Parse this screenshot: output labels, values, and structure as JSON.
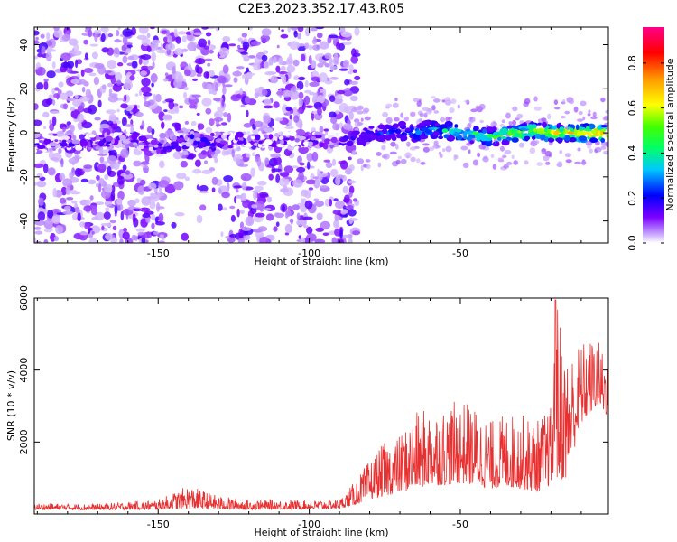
{
  "title": "C2E3.2023.352.17.43.R05",
  "chart_data": [
    {
      "type": "heatmap",
      "name": "spectrogram",
      "xlabel": "Height of straight line (km)",
      "ylabel": "Frequency (Hz)",
      "xlim": [
        -191,
        -1
      ],
      "ylim": [
        -50,
        48
      ],
      "xticks": [
        -150,
        -100,
        -50
      ],
      "yticks": [
        -40,
        -20,
        0,
        20,
        40
      ],
      "ridge": {
        "x": [
          -191,
          -180,
          -170,
          -160,
          -150,
          -145,
          -140,
          -135,
          -130,
          -120,
          -110,
          -100,
          -90,
          -86,
          -80,
          -75,
          -70,
          -65,
          -60,
          -55,
          -50,
          -45,
          -40,
          -35,
          -30,
          -25,
          -20,
          -15,
          -10,
          -5,
          -1
        ],
        "y": [
          -6,
          -5,
          -4,
          -3,
          -6,
          -4,
          -3,
          -5,
          -4,
          -3,
          -3,
          -3,
          -4,
          -3,
          -1,
          0,
          1,
          0,
          2,
          1,
          0,
          -1,
          -2,
          -1,
          0,
          1,
          0,
          0,
          0,
          0,
          0
        ]
      },
      "colorbar": {
        "label": "Normalized spectral amplitude",
        "ticks": [
          0.0,
          0.2,
          0.4,
          0.6,
          0.8
        ],
        "range": [
          0,
          0.96
        ]
      }
    },
    {
      "type": "line",
      "name": "snr",
      "xlabel": "Height of straight line (km)",
      "ylabel": "SNR (10 * v/v)",
      "xlim": [
        -191,
        -1
      ],
      "ylim": [
        0,
        6000
      ],
      "xticks": [
        -150,
        -100,
        -50
      ],
      "yticks": [
        2000,
        4000,
        6000
      ],
      "color": "#e83030",
      "envelope": {
        "x": [
          -191,
          -170,
          -150,
          -140,
          -130,
          -120,
          -100,
          -90,
          -85,
          -80,
          -75,
          -70,
          -65,
          -60,
          -55,
          -50,
          -45,
          -40,
          -35,
          -30,
          -25,
          -20,
          -18,
          -15,
          -10,
          -5,
          -1
        ],
        "low": [
          120,
          110,
          120,
          150,
          130,
          120,
          130,
          150,
          250,
          400,
          500,
          600,
          700,
          800,
          800,
          850,
          800,
          700,
          750,
          700,
          600,
          800,
          900,
          1000,
          2500,
          3000,
          2700
        ],
        "high": [
          300,
          280,
          400,
          800,
          500,
          400,
          380,
          400,
          900,
          1500,
          2000,
          2200,
          2800,
          3000,
          3000,
          3200,
          3000,
          2600,
          2800,
          2800,
          2600,
          3000,
          6000,
          4500,
          4800,
          4900,
          4500
        ]
      }
    }
  ]
}
